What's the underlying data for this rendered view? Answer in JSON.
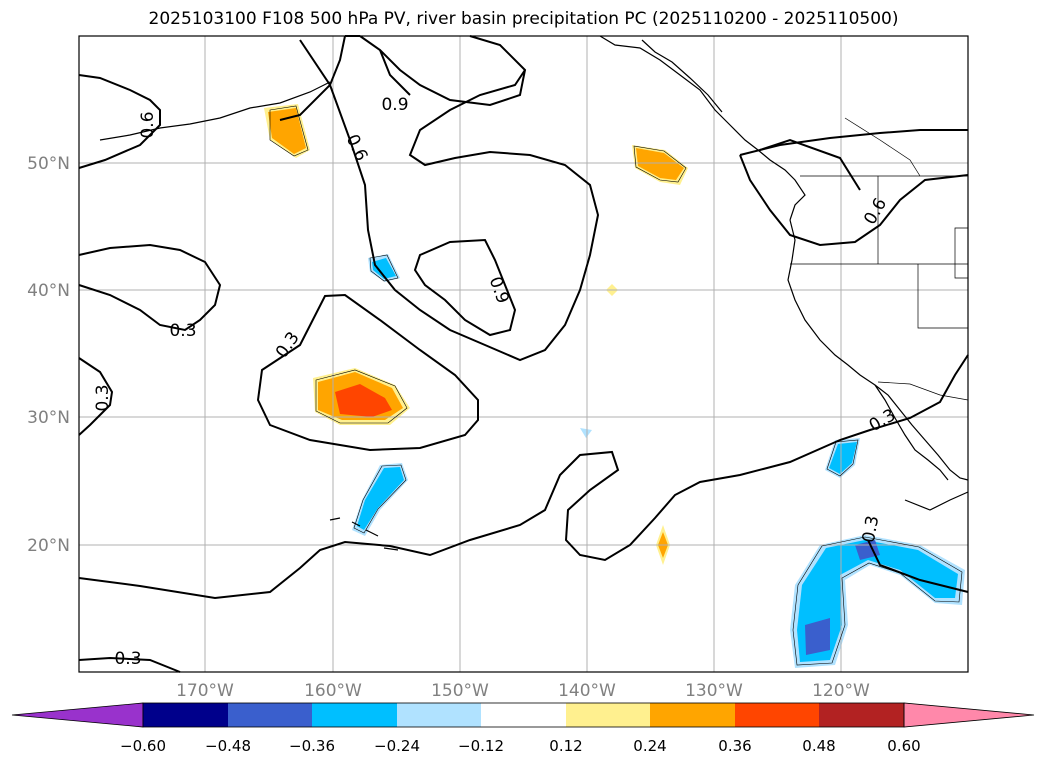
{
  "title": "2025103100 F108 500 hPa PV, river basin precipitation PC (2025110200 - 2025110500)",
  "map": {
    "lon_range": [
      -180,
      -110
    ],
    "lat_range": [
      10,
      60
    ],
    "lat_labels": [
      {
        "lat": 50,
        "label": "50°N"
      },
      {
        "lat": 40,
        "label": "40°N"
      },
      {
        "lat": 30,
        "label": "30°N"
      },
      {
        "lat": 20,
        "label": "20°N"
      }
    ],
    "lon_labels": [
      {
        "lon": -170,
        "label": "170°W"
      },
      {
        "lon": -160,
        "label": "160°W"
      },
      {
        "lon": -150,
        "label": "150°W"
      },
      {
        "lon": -140,
        "label": "140°W"
      },
      {
        "lon": -130,
        "label": "130°W"
      },
      {
        "lon": -120,
        "label": "120°W"
      }
    ],
    "contour_labels": [
      "0.3",
      "0.3",
      "0.3",
      "0.3",
      "0.3",
      "0.3",
      "0.6",
      "0.6",
      "0.9",
      "0.9",
      "0.6"
    ]
  },
  "colorbar": {
    "ticks": [
      "−0.60",
      "−0.48",
      "−0.36",
      "−0.24",
      "−0.12",
      "0.12",
      "0.24",
      "0.36",
      "0.48",
      "0.60"
    ],
    "colors": [
      "#9932cc",
      "#00008b",
      "#3a5fcd",
      "#00bfff",
      "#b0e2ff",
      "#ffffff",
      "#fff08f",
      "#ffa500",
      "#ff4500",
      "#b22222",
      "#ff88aa"
    ]
  }
}
